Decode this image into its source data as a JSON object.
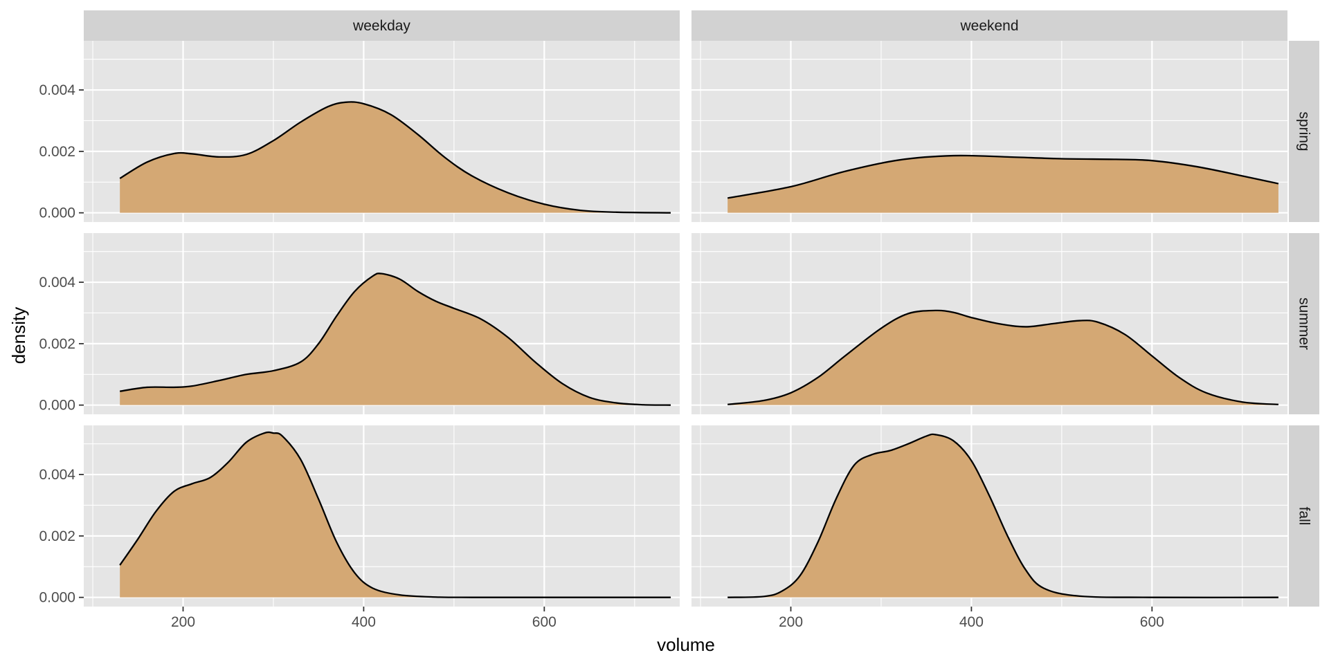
{
  "chart_data": {
    "type": "area",
    "subtype": "faceted density plot",
    "xlabel": "volume",
    "ylabel": "density",
    "column_facets": [
      "weekday",
      "weekend"
    ],
    "row_facets": [
      "spring",
      "summer",
      "fall"
    ],
    "xlim": [
      90,
      750
    ],
    "ylim": [
      -0.0003,
      0.0056
    ],
    "x_ticks": [
      200,
      400,
      600
    ],
    "x_minor_ticks": [
      100,
      300,
      500,
      700
    ],
    "y_ticks": [
      0.0,
      0.002,
      0.004
    ],
    "y_tick_labels": [
      "0.000",
      "0.002",
      "0.004"
    ],
    "y_minor_ticks": [
      0.001,
      0.003,
      0.005
    ],
    "grid": true,
    "legend": "none",
    "colors": {
      "fill": "#d4a874",
      "line": "#000000",
      "panel_bg": "#e5e5e5",
      "grid": "#ffffff",
      "strip_bg": "#d2d2d2"
    },
    "panels": [
      {
        "col": "weekday",
        "row": "spring",
        "x": [
          130,
          160,
          190,
          210,
          240,
          270,
          300,
          330,
          360,
          380,
          400,
          430,
          460,
          490,
          520,
          560,
          600,
          640,
          680,
          740
        ],
        "y": [
          0.00112,
          0.00165,
          0.00193,
          0.00192,
          0.00182,
          0.0019,
          0.00235,
          0.00295,
          0.00345,
          0.0036,
          0.00355,
          0.0032,
          0.00255,
          0.0018,
          0.0012,
          0.00065,
          0.00028,
          8e-05,
          2e-05,
          0.0
        ]
      },
      {
        "col": "weekend",
        "row": "spring",
        "x": [
          130,
          200,
          260,
          320,
          380,
          440,
          500,
          560,
          600,
          650,
          700,
          740
        ],
        "y": [
          0.00048,
          0.00085,
          0.00135,
          0.00172,
          0.00186,
          0.00182,
          0.00176,
          0.00174,
          0.0017,
          0.0015,
          0.0012,
          0.00095
        ]
      },
      {
        "col": "weekday",
        "row": "summer",
        "x": [
          130,
          160,
          190,
          210,
          240,
          270,
          300,
          330,
          350,
          370,
          390,
          410,
          420,
          440,
          460,
          480,
          500,
          530,
          560,
          590,
          620,
          650,
          680,
          710,
          740
        ],
        "y": [
          0.00045,
          0.00058,
          0.00058,
          0.00062,
          0.0008,
          0.001,
          0.00112,
          0.0014,
          0.002,
          0.0029,
          0.0037,
          0.0042,
          0.00428,
          0.0041,
          0.0037,
          0.00338,
          0.00315,
          0.0028,
          0.0022,
          0.0014,
          0.0007,
          0.00025,
          7e-05,
          1e-05,
          0.0
        ]
      },
      {
        "col": "weekend",
        "row": "summer",
        "x": [
          130,
          170,
          200,
          230,
          260,
          300,
          330,
          360,
          380,
          400,
          430,
          460,
          490,
          520,
          540,
          570,
          600,
          630,
          660,
          700,
          740
        ],
        "y": [
          2e-05,
          0.00015,
          0.0004,
          0.0009,
          0.0016,
          0.0025,
          0.00298,
          0.00308,
          0.00302,
          0.00285,
          0.00265,
          0.00255,
          0.00265,
          0.00275,
          0.0027,
          0.0023,
          0.0016,
          0.0009,
          0.0004,
          0.0001,
          2e-05
        ]
      },
      {
        "col": "weekday",
        "row": "fall",
        "x": [
          130,
          150,
          170,
          190,
          210,
          230,
          250,
          270,
          290,
          300,
          310,
          330,
          350,
          370,
          390,
          410,
          440,
          480,
          520,
          600,
          740
        ],
        "y": [
          0.00105,
          0.0019,
          0.0028,
          0.00345,
          0.0037,
          0.0039,
          0.0044,
          0.00505,
          0.00535,
          0.00535,
          0.00525,
          0.0045,
          0.0032,
          0.0018,
          0.0008,
          0.0003,
          8e-05,
          1e-05,
          0.0,
          0.0,
          0.0
        ]
      },
      {
        "col": "weekend",
        "row": "fall",
        "x": [
          130,
          170,
          190,
          210,
          230,
          250,
          270,
          290,
          310,
          330,
          350,
          360,
          380,
          400,
          420,
          440,
          460,
          480,
          520,
          600,
          740
        ],
        "y": [
          0.0,
          3e-05,
          0.0002,
          0.0007,
          0.0018,
          0.0032,
          0.0043,
          0.00465,
          0.00478,
          0.005,
          0.00525,
          0.0053,
          0.0051,
          0.00445,
          0.0033,
          0.002,
          0.0009,
          0.0003,
          4e-05,
          0.0,
          0.0
        ]
      }
    ]
  }
}
